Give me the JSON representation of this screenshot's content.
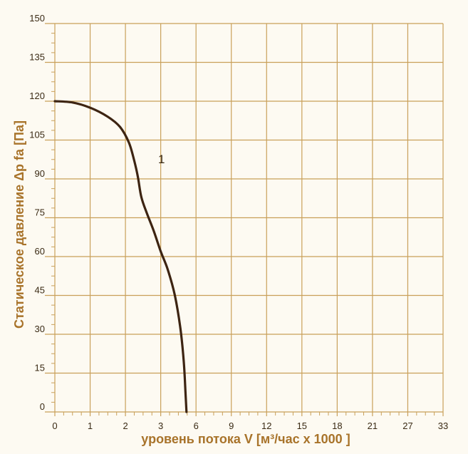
{
  "chart_data": {
    "type": "line",
    "xlabel": "уровень потока  V [м³/час x 1000 ]",
    "ylabel": "Статическое давление  Δp fa [Па]",
    "x_ticks": [
      {
        "pos": 0,
        "label": "0"
      },
      {
        "pos": 1,
        "label": "1"
      },
      {
        "pos": 2,
        "label": "2"
      },
      {
        "pos": 3,
        "label": "3"
      },
      {
        "pos": 4,
        "label": "6"
      },
      {
        "pos": 5,
        "label": "9"
      },
      {
        "pos": 6,
        "label": "12"
      },
      {
        "pos": 7,
        "label": "15"
      },
      {
        "pos": 8,
        "label": "18"
      },
      {
        "pos": 9,
        "label": "21"
      },
      {
        "pos": 10,
        "label": "27"
      },
      {
        "pos": 11,
        "label": "33"
      }
    ],
    "yticks": [
      0,
      15,
      30,
      45,
      60,
      75,
      90,
      105,
      120,
      135,
      150
    ],
    "ylim": [
      0,
      150
    ],
    "grid": true,
    "colors": {
      "grid": "#c9a05a",
      "curve": "#3d2412",
      "axis_title": "#a8732a",
      "background": "#fdfaf2"
    },
    "series": [
      {
        "name": "1",
        "x": [
          0,
          0.5,
          1.0,
          1.5,
          1.85,
          2.1,
          2.25,
          2.35,
          2.45,
          2.6,
          2.8,
          3.0,
          3.2,
          3.4,
          3.55,
          3.65,
          3.7,
          3.73
        ],
        "y": [
          120,
          119.5,
          117.5,
          114,
          110,
          104,
          97,
          91,
          83,
          77,
          70,
          62,
          55,
          45,
          33,
          20,
          8,
          0
        ]
      }
    ]
  }
}
